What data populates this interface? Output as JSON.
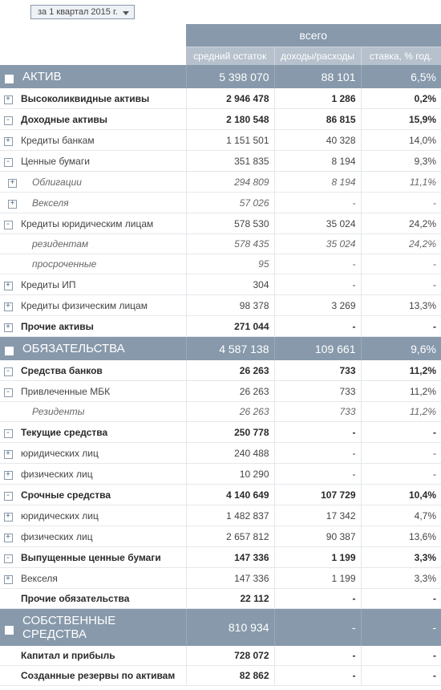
{
  "period_selector": {
    "value": "за 1 квартал 2015 г."
  },
  "header": {
    "group": "всего",
    "columns": [
      "средний остаток",
      "доходы/расходы",
      "ставка, % год."
    ]
  },
  "rows": [
    {
      "type": "section",
      "toggle": "-",
      "label": "АКТИВ",
      "v1": "5 398 070",
      "v2": "88 101",
      "v3": "6,5%"
    },
    {
      "type": "lvl1",
      "toggle": "+",
      "label": "Высоколиквидные активы",
      "v1": "2 946 478",
      "v2": "1 286",
      "v3": "0,2%"
    },
    {
      "type": "lvl1",
      "toggle": "-",
      "label": "Доходные активы",
      "v1": "2 180 548",
      "v2": "86 815",
      "v3": "15,9%"
    },
    {
      "type": "lvl2",
      "toggle": "+",
      "label": "Кредиты банкам",
      "v1": "1 151 501",
      "v2": "40 328",
      "v3": "14,0%"
    },
    {
      "type": "lvl2",
      "toggle": "-",
      "label": "Ценные бумаги",
      "v1": "351 835",
      "v2": "8 194",
      "v3": "9,3%"
    },
    {
      "type": "lvl3",
      "toggle": "+",
      "label": "Облигации",
      "v1": "294 809",
      "v2": "8 194",
      "v3": "11,1%"
    },
    {
      "type": "lvl3",
      "toggle": "+",
      "label": "Векселя",
      "v1": "57 026",
      "v2": "-",
      "v3": "-"
    },
    {
      "type": "lvl2",
      "toggle": "-",
      "label": "Кредиты юридическим лицам",
      "v1": "578 530",
      "v2": "35 024",
      "v3": "24,2%"
    },
    {
      "type": "lvl3",
      "toggle": "",
      "label": "резидентам",
      "v1": "578 435",
      "v2": "35 024",
      "v3": "24,2%"
    },
    {
      "type": "lvl3",
      "toggle": "",
      "label": "просроченные",
      "v1": "95",
      "v2": "-",
      "v3": "-"
    },
    {
      "type": "lvl2",
      "toggle": "+",
      "label": "Кредиты ИП",
      "v1": "304",
      "v2": "-",
      "v3": "-"
    },
    {
      "type": "lvl2",
      "toggle": "+",
      "label": "Кредиты физическим лицам",
      "v1": "98 378",
      "v2": "3 269",
      "v3": "13,3%"
    },
    {
      "type": "lvl1",
      "toggle": "+",
      "label": "Прочие активы",
      "v1": "271 044",
      "v2": "-",
      "v3": "-"
    },
    {
      "type": "section",
      "toggle": "-",
      "label": "ОБЯЗАТЕЛЬСТВА",
      "v1": "4 587 138",
      "v2": "109 661",
      "v3": "9,6%"
    },
    {
      "type": "lvl1",
      "toggle": "-",
      "label": "Средства банков",
      "v1": "26 263",
      "v2": "733",
      "v3": "11,2%"
    },
    {
      "type": "lvl2",
      "toggle": "-",
      "label": "Привлеченные МБК",
      "v1": "26 263",
      "v2": "733",
      "v3": "11,2%"
    },
    {
      "type": "lvl3",
      "toggle": "",
      "label": "Резиденты",
      "v1": "26 263",
      "v2": "733",
      "v3": "11,2%"
    },
    {
      "type": "lvl1",
      "toggle": "-",
      "label": "Текущие средства",
      "v1": "250 778",
      "v2": "-",
      "v3": "-"
    },
    {
      "type": "lvl2",
      "toggle": "+",
      "label": "юридических лиц",
      "v1": "240 488",
      "v2": "-",
      "v3": "-"
    },
    {
      "type": "lvl2",
      "toggle": "+",
      "label": "физических лиц",
      "v1": "10 290",
      "v2": "-",
      "v3": "-"
    },
    {
      "type": "lvl1",
      "toggle": "-",
      "label": "Срочные средства",
      "v1": "4 140 649",
      "v2": "107 729",
      "v3": "10,4%"
    },
    {
      "type": "lvl2",
      "toggle": "+",
      "label": "юридических лиц",
      "v1": "1 482 837",
      "v2": "17 342",
      "v3": "4,7%"
    },
    {
      "type": "lvl2",
      "toggle": "+",
      "label": "физических лиц",
      "v1": "2 657 812",
      "v2": "90 387",
      "v3": "13,6%"
    },
    {
      "type": "lvl1",
      "toggle": "-",
      "label": "Выпущенные ценные бумаги",
      "v1": "147 336",
      "v2": "1 199",
      "v3": "3,3%"
    },
    {
      "type": "lvl2",
      "toggle": "+",
      "label": "Векселя",
      "v1": "147 336",
      "v2": "1 199",
      "v3": "3,3%"
    },
    {
      "type": "lvl1",
      "toggle": "",
      "label": "Прочие обязательства",
      "v1": "22 112",
      "v2": "-",
      "v3": "-"
    },
    {
      "type": "section",
      "toggle": "-",
      "label": "СОБСТВЕННЫЕ СРЕДСТВА",
      "v1": "810 934",
      "v2": "-",
      "v3": "-"
    },
    {
      "type": "lvl1",
      "toggle": "",
      "label": "Капитал и прибыль",
      "v1": "728 072",
      "v2": "-",
      "v3": "-"
    },
    {
      "type": "lvl1",
      "toggle": "",
      "label": "Созданные резервы по активам",
      "v1": "82 862",
      "v2": "-",
      "v3": "-"
    }
  ]
}
